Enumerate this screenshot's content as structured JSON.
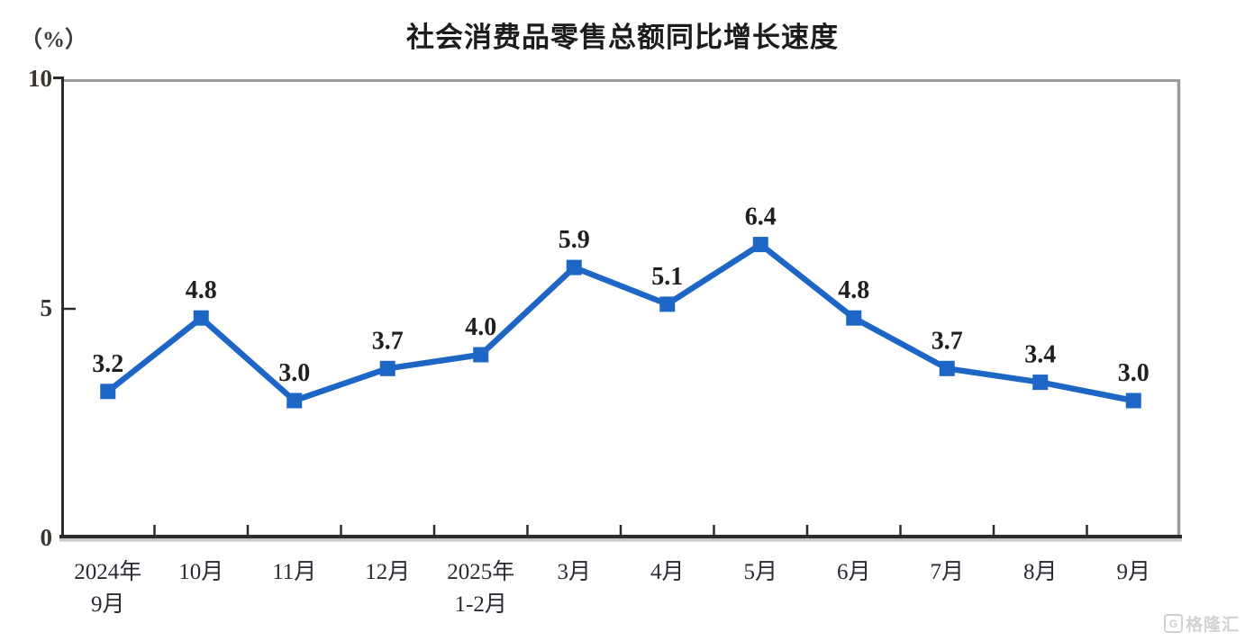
{
  "header": {
    "title": "社会消费品零售总额同比增长速度",
    "unit_label": "（%）"
  },
  "watermark": {
    "logo_letter": "G",
    "brand": "格隆汇"
  },
  "colors": {
    "line": "#1e66c6",
    "axis_dark": "#2b2b2b",
    "axis_light": "#9a9a9a",
    "axis_shadow": "#c9c9c9",
    "data_label_text": "#1f1f1f",
    "watermark": "#d2d2d2"
  },
  "chart_data": {
    "type": "line",
    "title": "社会消费品零售总额同比增长速度",
    "ylabel": "（%）",
    "xlabel": "",
    "ylim": [
      0,
      10
    ],
    "yticks": [
      0,
      5,
      10
    ],
    "grid": false,
    "legend_position": "none",
    "marker": "square",
    "data_labels": true,
    "categories": [
      "2024年9月",
      "10月",
      "11月",
      "12月",
      "2025年1-2月",
      "3月",
      "4月",
      "5月",
      "6月",
      "7月",
      "8月",
      "9月"
    ],
    "category_label_lines": [
      [
        "2024年",
        "9月"
      ],
      [
        "10月"
      ],
      [
        "11月"
      ],
      [
        "12月"
      ],
      [
        "2025年",
        "1-2月"
      ],
      [
        "3月"
      ],
      [
        "4月"
      ],
      [
        "5月"
      ],
      [
        "6月"
      ],
      [
        "7月"
      ],
      [
        "8月"
      ],
      [
        "9月"
      ]
    ],
    "series": [
      {
        "name": "社会消费品零售总额同比增长速度",
        "values": [
          3.2,
          4.8,
          3.0,
          3.7,
          4.0,
          5.9,
          5.1,
          6.4,
          4.8,
          3.7,
          3.4,
          3.0
        ],
        "value_labels": [
          "3.2",
          "4.8",
          "3.0",
          "3.7",
          "4.0",
          "5.9",
          "5.1",
          "6.4",
          "4.8",
          "3.7",
          "3.4",
          "3.0"
        ]
      }
    ]
  }
}
